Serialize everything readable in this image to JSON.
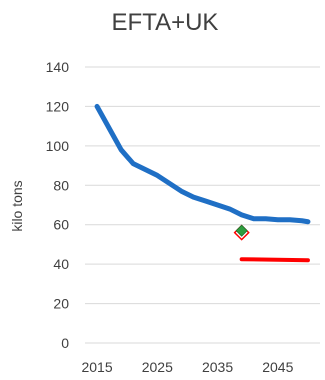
{
  "chart_data": {
    "type": "line",
    "title": "EFTA+UK",
    "xlabel": "",
    "ylabel": "kilo tons",
    "xlim": [
      2013,
      2052
    ],
    "ylim": [
      0,
      140
    ],
    "x_ticks": [
      2015,
      2025,
      2035,
      2045
    ],
    "y_ticks": [
      0,
      20,
      40,
      60,
      80,
      100,
      120,
      140
    ],
    "grid": true,
    "legend": "none",
    "series": [
      {
        "type": "line",
        "color": "#1f6fc5",
        "x": [
          2015,
          2017,
          2019,
          2021,
          2023,
          2025,
          2027,
          2029,
          2031,
          2033,
          2035,
          2037,
          2039,
          2041,
          2043,
          2045,
          2047,
          2049,
          2050
        ],
        "y": [
          120,
          109,
          98,
          91,
          88,
          85,
          81,
          77,
          74,
          72,
          70,
          68,
          65,
          63,
          63,
          62.5,
          62.5,
          62,
          61.5
        ]
      },
      {
        "type": "line",
        "color": "#ff0000",
        "x": [
          2039,
          2050
        ],
        "y": [
          42.5,
          42
        ]
      },
      {
        "type": "marker",
        "marker_shape": "diamond-outline",
        "color": "#ff0000",
        "x": [
          2039
        ],
        "y": [
          56
        ]
      },
      {
        "type": "marker",
        "marker_shape": "diamond-filled",
        "color": "#2e9e3f",
        "x": [
          2039
        ],
        "y": [
          57
        ]
      }
    ]
  }
}
